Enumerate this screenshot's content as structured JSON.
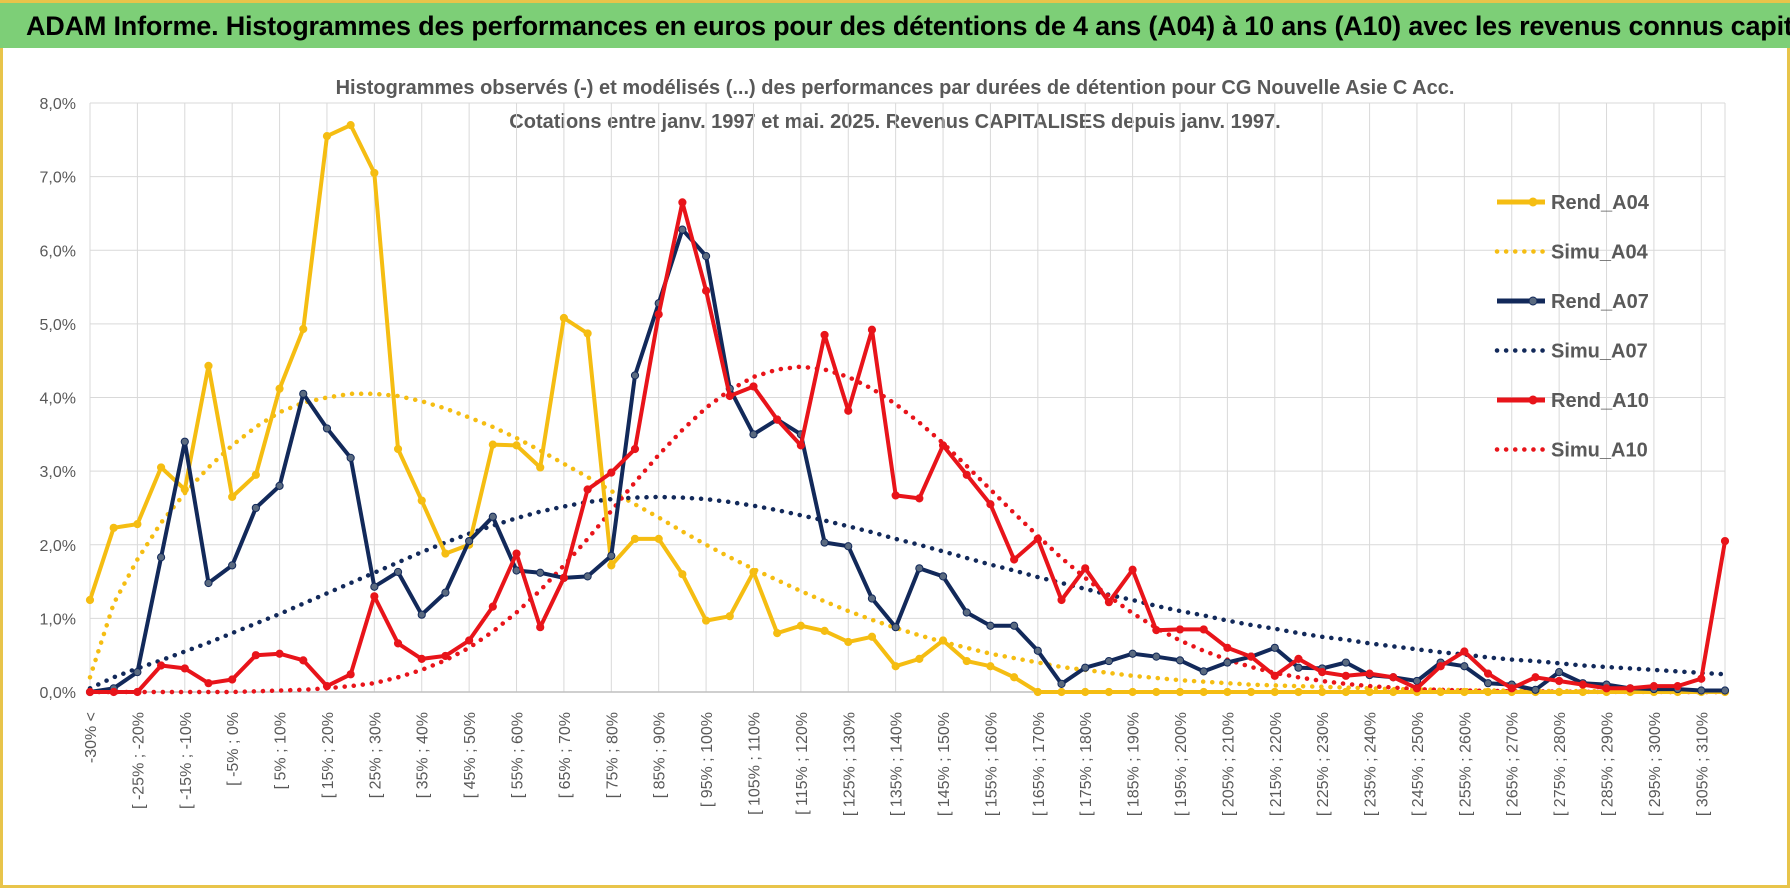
{
  "banner": {
    "title": "ADAM Informe. Histogrammes des performances en euros pour des détentions de 4 ans (A04) à 10 ans (A10) avec les revenus connus capitalisés"
  },
  "colors": {
    "banner": "#7dcf77",
    "frame": "#e8c44a",
    "a04": "#f5bd12",
    "a07": "#12295a",
    "a10": "#e8141a",
    "grid": "#d9d9d9"
  },
  "chart_data": {
    "type": "line",
    "title": "Histogrammes observés (-) et modélisés (...) des performances par durées de détention pour CG Nouvelle Asie C Acc.",
    "subtitle": "Cotations entre janv. 1997 et mai. 2025.  Revenus CAPITALISES depuis janv. 1997.",
    "xlabel": "",
    "ylabel": "",
    "ylim": [
      0,
      8
    ],
    "y_ticks": [
      "0,0%",
      "1,0%",
      "2,0%",
      "3,0%",
      "4,0%",
      "5,0%",
      "6,0%",
      "7,0%",
      "8,0%"
    ],
    "grid": true,
    "legend_position": "top-right",
    "x_tick_labels": [
      "-30% <",
      "[ -25% ; -20%",
      "[ -15% ; -10%",
      "[ -5% ; 0%",
      "[ 5% ; 10%",
      "[ 15% ; 20%",
      "[ 25% ; 30%",
      "[ 35% ; 40%",
      "[ 45% ; 50%",
      "[ 55% ; 60%",
      "[ 65% ; 70%",
      "[ 75% ; 80%",
      "[ 85% ; 90%",
      "[ 95% ; 100%",
      "[ 105% ; 110%",
      "[ 115% ; 120%",
      "[ 125% ; 130%",
      "[ 135% ; 140%",
      "[ 145% ; 150%",
      "[ 155% ; 160%",
      "[ 165% ; 170%",
      "[ 175% ; 180%",
      "[ 185% ; 190%",
      "[ 195% ; 200%",
      "[ 205% ; 210%",
      "[ 215% ; 220%",
      "[ 225% ; 230%",
      "[ 235% ; 240%",
      "[ 245% ; 250%",
      "[ 255% ; 260%",
      "[ 265% ; 270%",
      "[ 275% ; 280%",
      "[ 285% ; 290%",
      "[ 295% ; 300%",
      "[ 305% ; 310%"
    ],
    "series": [
      {
        "name": "Rend_A04",
        "style": "solid",
        "color": "#f5bd12",
        "values": [
          1.25,
          2.23,
          2.28,
          3.05,
          2.75,
          4.43,
          2.65,
          2.95,
          4.12,
          4.93,
          7.55,
          7.7,
          7.05,
          3.3,
          2.6,
          1.88,
          2.0,
          3.36,
          3.35,
          3.05,
          5.08,
          4.87,
          1.72,
          2.08,
          2.08,
          1.6,
          0.97,
          1.03,
          1.63,
          0.8,
          0.9,
          0.83,
          0.68,
          0.75,
          0.35,
          0.45,
          0.7,
          0.42,
          0.35,
          0.2,
          0,
          0,
          0,
          0,
          0,
          0,
          0,
          0,
          0,
          0,
          0,
          0,
          0,
          0,
          0,
          0,
          0,
          0,
          0,
          0,
          0,
          0,
          0,
          0,
          0,
          0,
          0,
          0,
          0,
          0
        ]
      },
      {
        "name": "Simu_A04",
        "style": "dotted",
        "color": "#f5bd12",
        "values": [
          0.2,
          1.2,
          1.8,
          2.3,
          2.7,
          3.05,
          3.35,
          3.6,
          3.8,
          3.93,
          4.0,
          4.05,
          4.05,
          4.02,
          3.95,
          3.85,
          3.73,
          3.6,
          3.45,
          3.28,
          3.1,
          2.92,
          2.73,
          2.55,
          2.37,
          2.18,
          2.0,
          1.83,
          1.67,
          1.52,
          1.37,
          1.23,
          1.1,
          0.98,
          0.87,
          0.77,
          0.68,
          0.6,
          0.52,
          0.46,
          0.4,
          0.34,
          0.3,
          0.26,
          0.22,
          0.19,
          0.16,
          0.14,
          0.12,
          0.1,
          0.09,
          0.08,
          0.07,
          0.06,
          0.05,
          0.04,
          0.035,
          0.03,
          0.025,
          0.02,
          0.018,
          0.015,
          0.013,
          0.011,
          0.01,
          0.009,
          0.008,
          0.007,
          0.006,
          0.005
        ]
      },
      {
        "name": "Rend_A07",
        "style": "solid",
        "color": "#12295a",
        "values": [
          0,
          0.05,
          0.27,
          1.83,
          3.4,
          1.48,
          1.72,
          2.5,
          2.8,
          4.05,
          3.58,
          3.18,
          1.43,
          1.63,
          1.05,
          1.35,
          2.05,
          2.38,
          1.65,
          1.62,
          1.55,
          1.57,
          1.85,
          4.3,
          5.28,
          6.28,
          5.92,
          4.12,
          3.5,
          3.7,
          3.5,
          2.03,
          1.98,
          1.27,
          0.88,
          1.68,
          1.57,
          1.08,
          0.9,
          0.9,
          0.56,
          0.11,
          0.33,
          0.42,
          0.52,
          0.48,
          0.43,
          0.28,
          0.4,
          0.48,
          0.6,
          0.33,
          0.32,
          0.4,
          0.23,
          0.2,
          0.15,
          0.4,
          0.35,
          0.12,
          0.1,
          0.03,
          0.27,
          0.12,
          0.1,
          0.05,
          0.04,
          0.04,
          0.02,
          0.02
        ]
      },
      {
        "name": "Simu_A07",
        "style": "dotted",
        "color": "#12295a",
        "values": [
          0.05,
          0.2,
          0.32,
          0.43,
          0.55,
          0.67,
          0.8,
          0.93,
          1.06,
          1.2,
          1.34,
          1.48,
          1.62,
          1.76,
          1.9,
          2.03,
          2.15,
          2.26,
          2.36,
          2.45,
          2.52,
          2.58,
          2.62,
          2.64,
          2.65,
          2.64,
          2.62,
          2.58,
          2.53,
          2.47,
          2.4,
          2.33,
          2.25,
          2.17,
          2.08,
          2.0,
          1.91,
          1.82,
          1.73,
          1.65,
          1.56,
          1.48,
          1.4,
          1.32,
          1.25,
          1.17,
          1.1,
          1.04,
          0.97,
          0.91,
          0.86,
          0.8,
          0.75,
          0.71,
          0.66,
          0.62,
          0.58,
          0.54,
          0.51,
          0.47,
          0.44,
          0.42,
          0.39,
          0.36,
          0.34,
          0.32,
          0.3,
          0.28,
          0.26,
          0.24
        ]
      },
      {
        "name": "Rend_A10",
        "style": "solid",
        "color": "#e8141a",
        "values": [
          0,
          0,
          0,
          0.36,
          0.32,
          0.12,
          0.17,
          0.5,
          0.52,
          0.43,
          0.08,
          0.24,
          1.3,
          0.66,
          0.45,
          0.49,
          0.7,
          1.16,
          1.88,
          0.88,
          1.55,
          2.75,
          2.98,
          3.3,
          5.13,
          6.65,
          5.45,
          4.02,
          4.15,
          3.7,
          3.35,
          4.85,
          3.82,
          4.92,
          2.67,
          2.63,
          3.35,
          2.95,
          2.55,
          1.8,
          2.08,
          1.25,
          1.68,
          1.22,
          1.66,
          0.84,
          0.85,
          0.85,
          0.6,
          0.48,
          0.22,
          0.45,
          0.27,
          0.22,
          0.25,
          0.2,
          0.05,
          0.35,
          0.55,
          0.25,
          0.05,
          0.2,
          0.15,
          0.1,
          0.05,
          0.05,
          0.08,
          0.08,
          0.18,
          2.05
        ]
      },
      {
        "name": "Simu_A10",
        "style": "dotted",
        "color": "#e8141a",
        "values": [
          0.0,
          0.0,
          0.0,
          0.0,
          0.0,
          0.0,
          0.0,
          0.01,
          0.02,
          0.03,
          0.05,
          0.08,
          0.12,
          0.2,
          0.3,
          0.43,
          0.6,
          0.82,
          1.08,
          1.38,
          1.72,
          2.08,
          2.46,
          2.85,
          3.22,
          3.56,
          3.86,
          4.1,
          4.28,
          4.38,
          4.42,
          4.38,
          4.28,
          4.12,
          3.91,
          3.66,
          3.38,
          3.07,
          2.75,
          2.43,
          2.12,
          1.82,
          1.55,
          1.3,
          1.07,
          0.87,
          0.7,
          0.56,
          0.44,
          0.34,
          0.26,
          0.2,
          0.15,
          0.11,
          0.08,
          0.06,
          0.04,
          0.03,
          0.02,
          0.015,
          0.01,
          0.007,
          0.005,
          0.003,
          0.002,
          0.001,
          0.001,
          0.0,
          0.0,
          0.0
        ]
      }
    ]
  }
}
